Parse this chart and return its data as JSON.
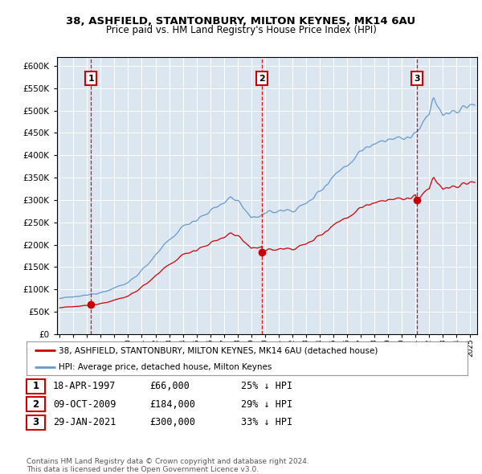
{
  "title1": "38, ASHFIELD, STANTONBURY, MILTON KEYNES, MK14 6AU",
  "title2": "Price paid vs. HM Land Registry's House Price Index (HPI)",
  "transactions": [
    {
      "num": 1,
      "date_str": "18-APR-1997",
      "year": 1997.29,
      "price": 66000
    },
    {
      "num": 2,
      "date_str": "09-OCT-2009",
      "year": 2009.77,
      "price": 184000
    },
    {
      "num": 3,
      "date_str": "29-JAN-2021",
      "year": 2021.08,
      "price": 300000
    }
  ],
  "legend_red": "38, ASHFIELD, STANTONBURY, MILTON KEYNES, MK14 6AU (detached house)",
  "legend_blue": "HPI: Average price, detached house, Milton Keynes",
  "table_rows": [
    [
      "1",
      "18-APR-1997",
      "£66,000",
      "25% ↓ HPI"
    ],
    [
      "2",
      "09-OCT-2009",
      "£184,000",
      "29% ↓ HPI"
    ],
    [
      "3",
      "29-JAN-2021",
      "£300,000",
      "33% ↓ HPI"
    ]
  ],
  "footnote1": "Contains HM Land Registry data © Crown copyright and database right 2024.",
  "footnote2": "This data is licensed under the Open Government Licence v3.0.",
  "ylim": [
    0,
    620000
  ],
  "xlim_start": 1994.8,
  "xlim_end": 2025.5,
  "bg_color": "#dce6f1",
  "red_color": "#cc0000",
  "blue_color": "#6699cc",
  "grid_color": "#ffffff",
  "yticks": [
    0,
    50000,
    100000,
    150000,
    200000,
    250000,
    300000,
    350000,
    400000,
    450000,
    500000,
    550000,
    600000
  ]
}
